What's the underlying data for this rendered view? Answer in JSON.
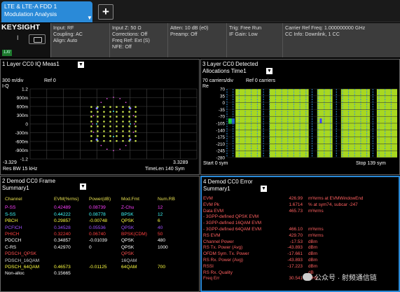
{
  "tab": {
    "line1": "LTE & LTE-A FDD 1",
    "line2": "Modulation Analysis",
    "add_label": "+"
  },
  "brand": "KEYSIGHT",
  "lxi": "LXI",
  "info": {
    "col1": [
      "Input: RF",
      "Coupling: AC",
      "Align: Auto"
    ],
    "col2": [
      "Input Z: 50 Ω",
      "Corrections: Off",
      "Freq Ref: Ext (S)",
      "NFE: Off"
    ],
    "col3": [
      "Atten: 10 dB (e0)",
      "Preamp: Off"
    ],
    "col4": [
      "Trig: Free Run",
      "IF Gain: Low"
    ],
    "col5": [
      "Carrier Ref Freq: 1.000000000 GHz",
      "CC Info: Downlink, 1 CC"
    ]
  },
  "panel1": {
    "title": "1 Layer CC0 IQ Meas1",
    "scale": "300 m/div",
    "ref": "Ref 0",
    "axis": "I-Q",
    "yticks": [
      "1.2",
      "900m",
      "600m",
      "300m",
      "0",
      "-300m",
      "-600m",
      "-900m",
      "-1.2"
    ],
    "xleft": "-3.329",
    "xright": "3.3289",
    "bottom_left": "Res BW 15 kHz",
    "bottom_right": "TimeLen 140  Sym",
    "colors": {
      "grid": "#444444",
      "qam": "#c8e04a",
      "qpsk": "#50a0ff",
      "psync": "#e050e0",
      "ssync": "#40e0e0"
    }
  },
  "panel3": {
    "title_line1": "3 Layer CC0 Detected",
    "title_line2": "Allocations Time1",
    "scale": "70  carriers/div",
    "ref": "Ref 0  carriers",
    "axis": "Re",
    "yticks": [
      "70",
      "35",
      "0",
      "-35",
      "-70",
      "-105",
      "-140",
      "-175",
      "-210",
      "-245",
      "-280"
    ],
    "bottom_left": "Start 0  sym",
    "bottom_right": "Stop 139  sym",
    "colors": {
      "alloc": "#a8d820",
      "ctrl": "#3090e0",
      "marker": "#20d040",
      "marker2": "#4040ff"
    }
  },
  "panel2": {
    "title_line1": "2 Demod CC0 Frame",
    "title_line2": "Summary1",
    "headers": [
      "Channel",
      "EVM(%rms)",
      "Power(dB)",
      "Mod.Fmt",
      "Num.RB"
    ],
    "rows": [
      {
        "ch": "P-SS",
        "evm": "0.42489",
        "pwr": "0.08739",
        "mod": "Z-Chu",
        "rb": "12",
        "color": "#ff40ff"
      },
      {
        "ch": "S-SS",
        "evm": "0.44222",
        "pwr": "0.08778",
        "mod": "BPSK",
        "rb": "12",
        "color": "#40ffff"
      },
      {
        "ch": "PBCH",
        "evm": "0.29857",
        "pwr": "-0.00748",
        "mod": "QPSK",
        "rb": "6",
        "color": "#ffff40"
      },
      {
        "ch": "PCFICH",
        "evm": "0.34528",
        "pwr": "0.05536",
        "mod": "QPSK",
        "rb": "40",
        "color": "#a050ff"
      },
      {
        "ch": "PHICH",
        "evm": "0.32240",
        "pwr": "0.06740",
        "mod": "BPSK(CDM)",
        "rb": "50",
        "color": "#ff4040"
      },
      {
        "ch": "PDCCH",
        "evm": "0.34857",
        "pwr": "-0.01039",
        "mod": "QPSK",
        "rb": "480",
        "color": "#ffffff"
      },
      {
        "ch": "C-RS",
        "evm": "0.42970",
        "pwr": "0",
        "mod": "QPSK",
        "rb": "1000",
        "color": "#ffffff"
      },
      {
        "ch": "PDSCH_QPSK",
        "evm": "",
        "pwr": "",
        "mod": "QPSK",
        "rb": "",
        "color": "#ff5050"
      },
      {
        "ch": "PDSCH_16QAM",
        "evm": "",
        "pwr": "",
        "mod": "16QAM",
        "rb": "",
        "color": "#d0d0d0"
      },
      {
        "ch": "PDSCH_64QAM",
        "evm": "0.46573",
        "pwr": "-0.01125",
        "mod": "64QAM",
        "rb": "700",
        "color": "#ffff40"
      },
      {
        "ch": "Non-alloc",
        "evm": "0.15665",
        "pwr": "",
        "mod": "",
        "rb": "",
        "color": "#ffffff"
      }
    ]
  },
  "panel4": {
    "title_line1": "4 Demod CC0 Error",
    "title_line2": "Summary1",
    "rows": [
      {
        "label": "EVM",
        "value": "426.99",
        "unit": "m%rms at  EVMWindowEnd",
        "color": "#ff6060"
      },
      {
        "label": "EVM Pk",
        "value": "1.6714",
        "unit": "%  at  sym74,  subcar  -247",
        "color": "#ff6060"
      },
      {
        "label": "Data EVM",
        "value": "465.73",
        "unit": "m%rms",
        "color": "#ff6060"
      },
      {
        "label": " - 3GPP-defined QPSK EVM",
        "value": "",
        "unit": "",
        "color": "#ff6060"
      },
      {
        "label": " - 3GPP-defined 16QAM EVM",
        "value": "",
        "unit": "",
        "color": "#ff6060"
      },
      {
        "label": " - 3GPP-defined 64QAM EVM",
        "value": "466.10",
        "unit": "m%rms",
        "color": "#ff6060"
      },
      {
        "label": "RS EVM",
        "value": "429.70",
        "unit": "m%rms",
        "color": "#ff6060"
      },
      {
        "label": "Channel Power",
        "value": "-17.53",
        "unit": "dBm",
        "color": "#ff6060"
      },
      {
        "label": "RS Tx. Power (Avg)",
        "value": "-43.893",
        "unit": "dBm",
        "color": "#ff6060"
      },
      {
        "label": "OFDM Sym. Tx. Power",
        "value": "-17.661",
        "unit": "dBm",
        "color": "#ff6060"
      },
      {
        "label": "RS Rx. Power (Avg)",
        "value": "-43.893",
        "unit": "dBm",
        "color": "#ff6060"
      },
      {
        "label": "RSSI",
        "value": "-17.223",
        "unit": "dBm",
        "color": "#ff6060"
      },
      {
        "label": "RS Rx. Quality",
        "value": "",
        "unit": "dB",
        "color": "#ff6060"
      },
      {
        "label": "Freq Err",
        "value": "30.541",
        "unit": "mHz",
        "color": "#ff6060"
      }
    ]
  },
  "watermark": "公众号 · 射频通信链"
}
